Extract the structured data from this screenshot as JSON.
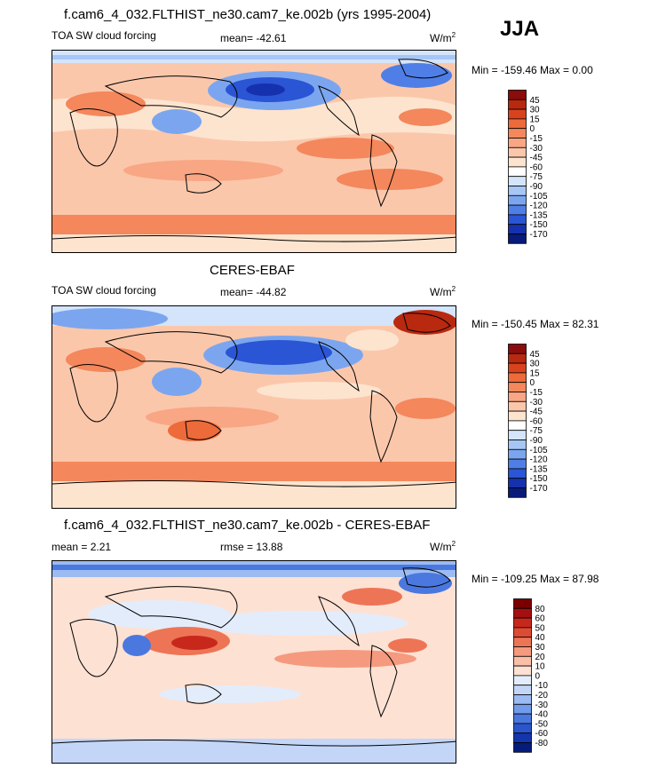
{
  "season": "JJA",
  "panels": [
    {
      "id": "model",
      "title": "f.cam6_4_032.FLTHIST_ne30.cam7_ke.002b (yrs 1995-2004)",
      "left_label": "TOA SW cloud forcing",
      "center_label": "mean= -42.61",
      "units_base": "W/m",
      "units_exp": "2",
      "minmax": "Min = -159.46 Max =   0.00",
      "colorbar_levels": [
        "45",
        "30",
        "15",
        "0",
        "-15",
        "-30",
        "-45",
        "-60",
        "-75",
        "-90",
        "-105",
        "-120",
        "-135",
        "-150",
        "-170"
      ],
      "colorbar_colors": [
        "#8b0c0c",
        "#b8290f",
        "#d8431d",
        "#ed6a3a",
        "#f4875c",
        "#f8a684",
        "#fbc7ab",
        "#fde4cf",
        "#ffffff",
        "#d4e4fa",
        "#a6c6f5",
        "#7ba6ef",
        "#4f7fe6",
        "#2a55d4",
        "#1631ae",
        "#081a7a"
      ]
    },
    {
      "id": "obs",
      "title": "CERES-EBAF",
      "left_label": "TOA SW cloud forcing",
      "center_label": "mean= -44.82",
      "units_base": "W/m",
      "units_exp": "2",
      "minmax": "Min = -150.45 Max =  82.31",
      "colorbar_levels": [
        "45",
        "30",
        "15",
        "0",
        "-15",
        "-30",
        "-45",
        "-60",
        "-75",
        "-90",
        "-105",
        "-120",
        "-135",
        "-150",
        "-170"
      ],
      "colorbar_colors": [
        "#8b0c0c",
        "#b8290f",
        "#d8431d",
        "#ed6a3a",
        "#f4875c",
        "#f8a684",
        "#fbc7ab",
        "#fde4cf",
        "#ffffff",
        "#d4e4fa",
        "#a6c6f5",
        "#7ba6ef",
        "#4f7fe6",
        "#2a55d4",
        "#1631ae",
        "#081a7a"
      ]
    },
    {
      "id": "diff",
      "title": "f.cam6_4_032.FLTHIST_ne30.cam7_ke.002b - CERES-EBAF",
      "left_label": "mean =   2.21",
      "center_label": "rmse =  13.88",
      "units_base": "W/m",
      "units_exp": "2",
      "minmax": "Min = -109.25 Max =  87.98",
      "colorbar_levels": [
        "80",
        "60",
        "50",
        "40",
        "30",
        "20",
        "10",
        "0",
        "-10",
        "-20",
        "-30",
        "-40",
        "-50",
        "-60",
        "-80"
      ],
      "colorbar_colors": [
        "#7a0000",
        "#a50f0f",
        "#c8281c",
        "#de4b33",
        "#ee7456",
        "#f59a7e",
        "#fabfa7",
        "#fde1d3",
        "#e3ecfb",
        "#c3d6f7",
        "#9bbbf2",
        "#719ceb",
        "#4a78df",
        "#2b55cc",
        "#1435ab",
        "#061c7a"
      ]
    }
  ],
  "chart_data": [
    {
      "type": "heatmap",
      "title": "f.cam6_4_032.FLTHIST_ne30.cam7_ke.002b (yrs 1995-2004)",
      "variable": "TOA SW cloud forcing",
      "season": "JJA",
      "units": "W/m2",
      "mean": -42.61,
      "min": -159.46,
      "max": 0.0,
      "contour_levels": [
        -170,
        -150,
        -135,
        -120,
        -105,
        -90,
        -75,
        -60,
        -45,
        -30,
        -15,
        0,
        15,
        30,
        45
      ]
    },
    {
      "type": "heatmap",
      "title": "CERES-EBAF",
      "variable": "TOA SW cloud forcing",
      "season": "JJA",
      "units": "W/m2",
      "mean": -44.82,
      "min": -150.45,
      "max": 82.31,
      "contour_levels": [
        -170,
        -150,
        -135,
        -120,
        -105,
        -90,
        -75,
        -60,
        -45,
        -30,
        -15,
        0,
        15,
        30,
        45
      ]
    },
    {
      "type": "heatmap",
      "title": "f.cam6_4_032.FLTHIST_ne30.cam7_ke.002b - CERES-EBAF",
      "season": "JJA",
      "units": "W/m2",
      "mean": 2.21,
      "rmse": 13.88,
      "min": -109.25,
      "max": 87.98,
      "contour_levels": [
        -80,
        -60,
        -50,
        -40,
        -30,
        -20,
        -10,
        0,
        10,
        20,
        30,
        40,
        50,
        60,
        80
      ]
    }
  ]
}
